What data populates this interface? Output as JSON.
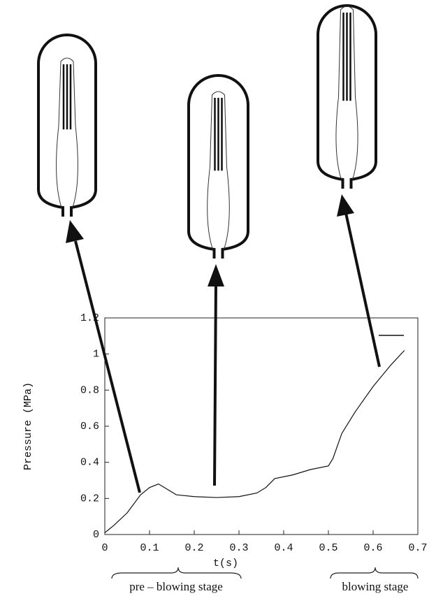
{
  "chart_data": {
    "type": "line",
    "xlabel": "t(s)",
    "ylabel": "Pressure (MPa)",
    "x": [
      0,
      0.01,
      0.02,
      0.05,
      0.08,
      0.1,
      0.12,
      0.14,
      0.16,
      0.2,
      0.25,
      0.3,
      0.34,
      0.36,
      0.38,
      0.42,
      0.46,
      0.5,
      0.51,
      0.53,
      0.56,
      0.6,
      0.64,
      0.67
    ],
    "values": [
      0.01,
      0.03,
      0.05,
      0.12,
      0.22,
      0.26,
      0.28,
      0.25,
      0.22,
      0.21,
      0.205,
      0.21,
      0.23,
      0.26,
      0.31,
      0.33,
      0.36,
      0.38,
      0.42,
      0.56,
      0.68,
      0.82,
      0.94,
      1.02
    ],
    "color": "#111111",
    "xlim": [
      0,
      0.7
    ],
    "xticks": [
      0,
      0.1,
      0.2,
      0.3,
      0.4,
      0.5,
      0.6,
      0.7
    ],
    "ylim": [
      0,
      1.2
    ],
    "yticks": [
      0,
      0.2,
      0.4,
      0.6,
      0.8,
      1,
      1.2
    ],
    "legend": "top-right",
    "annotations": [
      "pre – blowing stage",
      "blowing stage"
    ]
  }
}
